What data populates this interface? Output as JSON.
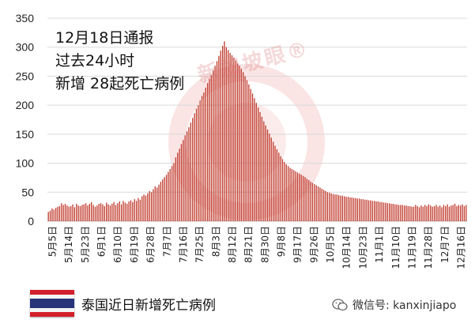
{
  "annotation": {
    "line1": "12月18日通报",
    "line2": "过去24小时",
    "line3": "新增 28起死亡病例"
  },
  "caption": "泰国近日新增死亡病例",
  "footer": {
    "text": "微信号: kanxinjiapo"
  },
  "watermark": {
    "text": "新加坡眼®"
  },
  "colors": {
    "bar": "#c0392b",
    "grid": "#d9d9d9",
    "axis": "#bfbfbf",
    "flag_red": "#d21f2b",
    "flag_blue": "#27347a"
  },
  "chart_data": {
    "type": "bar",
    "ylim": [
      0,
      350
    ],
    "yticks": [
      0,
      50,
      100,
      150,
      200,
      250,
      300,
      350
    ],
    "xtick_labels": [
      "5月5日",
      "5月14日",
      "5月23日",
      "6月1日",
      "6月10日",
      "6月19日",
      "6月28日",
      "7月7日",
      "7月16日",
      "7月25日",
      "8月3日",
      "8月12日",
      "8月21日",
      "8月30日",
      "9月8日",
      "9月17日",
      "9月26日",
      "10月5日",
      "10月14日",
      "10月23日",
      "11月1日",
      "11月10日",
      "11月19日",
      "11月28日",
      "12月7日",
      "12月16日"
    ],
    "start_date": "5月5日",
    "end_date": "12月18日",
    "grid": true,
    "values": [
      16,
      18,
      22,
      20,
      23,
      25,
      26,
      31,
      28,
      30,
      27,
      25,
      26,
      29,
      24,
      30,
      27,
      26,
      28,
      29,
      31,
      27,
      30,
      33,
      28,
      25,
      27,
      30,
      31,
      29,
      26,
      32,
      29,
      27,
      30,
      33,
      28,
      31,
      34,
      29,
      35,
      32,
      30,
      34,
      36,
      33,
      38,
      35,
      40,
      37,
      43,
      46,
      44,
      48,
      52,
      50,
      55,
      60,
      58,
      63,
      68,
      72,
      76,
      80,
      85,
      90,
      95,
      100,
      110,
      118,
      125,
      133,
      140,
      148,
      155,
      162,
      170,
      178,
      186,
      194,
      200,
      208,
      216,
      222,
      230,
      238,
      245,
      252,
      260,
      268,
      276,
      285,
      294,
      302,
      310,
      300,
      295,
      290,
      286,
      282,
      277,
      272,
      268,
      263,
      257,
      250,
      243,
      236,
      228,
      220,
      212,
      204,
      196,
      188,
      180,
      172,
      165,
      158,
      151,
      144,
      137,
      130,
      124,
      118,
      112,
      107,
      102,
      98,
      95,
      92,
      90,
      88,
      86,
      84,
      82,
      80,
      78,
      76,
      73,
      71,
      68,
      66,
      64,
      62,
      60,
      58,
      56,
      54,
      52,
      50,
      49,
      48,
      47,
      46,
      46,
      45,
      44,
      44,
      43,
      42,
      42,
      41,
      41,
      40,
      40,
      39,
      39,
      38,
      38,
      37,
      37,
      36,
      36,
      35,
      35,
      34,
      34,
      33,
      33,
      32,
      32,
      31,
      31,
      30,
      30,
      29,
      29,
      28,
      28,
      28,
      27,
      27,
      26,
      26,
      25,
      25,
      28,
      26,
      24,
      27,
      25,
      28,
      26,
      29,
      27,
      25,
      26,
      28,
      25,
      27,
      24,
      28,
      26,
      29,
      25,
      27,
      28,
      30,
      26,
      28,
      27,
      29,
      26,
      28
    ],
    "xlabel": "",
    "ylabel": ""
  }
}
